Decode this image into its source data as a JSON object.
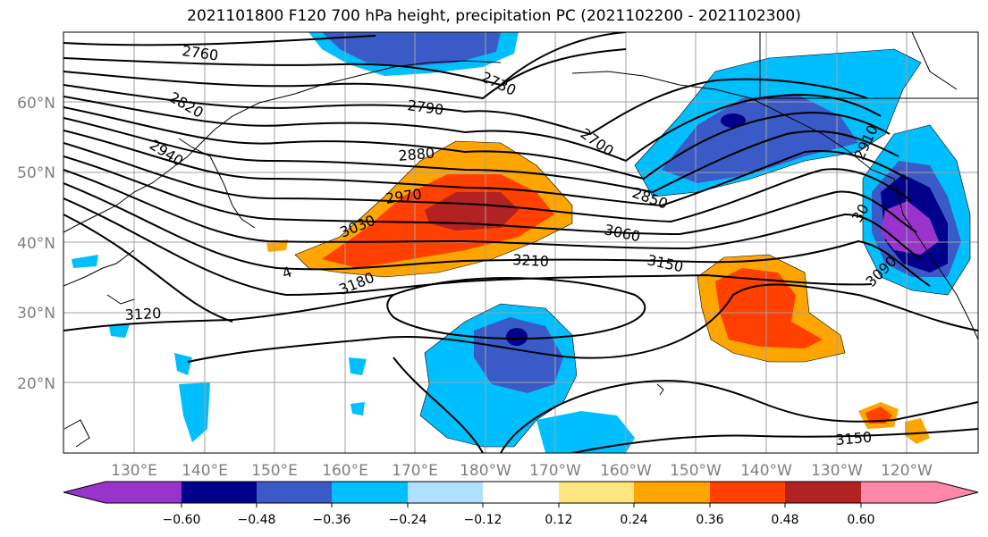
{
  "title": "2021101800 F120 700 hPa height, precipitation PC (2021102200 - 2021102300)",
  "colors": {
    "neg_060": "#9933cc",
    "neg_048": "#00008b",
    "neg_036": "#3a5bc7",
    "neg_024": "#00bfff",
    "neg_012": "#b0e0ff",
    "zero": "#ffffff",
    "pos_012": "#ffe680",
    "pos_024": "#ffa500",
    "pos_036": "#ff4000",
    "pos_048": "#b22222",
    "pos_060": "#ff88aa"
  },
  "map": {
    "lat_labels": [
      "60°N",
      "50°N",
      "40°N",
      "30°N",
      "20°N"
    ],
    "lon_labels": [
      "130°E",
      "140°E",
      "150°E",
      "160°E",
      "170°E",
      "180°W",
      "170°W",
      "160°W",
      "150°W",
      "140°W",
      "130°W",
      "120°W"
    ],
    "contour_labels": [
      "2760",
      "2730",
      "2820",
      "2790",
      "2940",
      "2880",
      "2700",
      "2910",
      "2970",
      "3030",
      "2850",
      "3060",
      "3210",
      "3150",
      "3180",
      "3120",
      "3090",
      "3150",
      "4"
    ]
  },
  "colorbar": {
    "ticks": [
      "−0.60",
      "−0.48",
      "−0.36",
      "−0.24",
      "−0.12",
      "0.12",
      "0.24",
      "0.36",
      "0.48",
      "0.60"
    ]
  }
}
